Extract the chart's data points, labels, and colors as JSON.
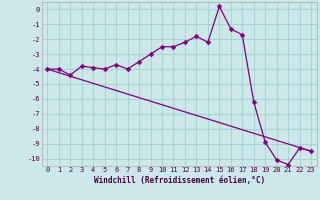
{
  "xlabel": "Windchill (Refroidissement éolien,°C)",
  "background_color": "#cce8e8",
  "grid_color": "#99cccc",
  "line_color": "#800080",
  "line1_x": [
    0,
    1,
    2,
    3,
    4,
    5,
    6,
    7,
    8,
    9,
    10,
    11,
    12,
    13,
    14,
    15,
    16,
    17,
    18,
    19,
    20,
    21,
    22,
    23
  ],
  "line1_y": [
    -4.0,
    -4.0,
    -4.4,
    -3.8,
    -3.9,
    -4.0,
    -3.7,
    -4.0,
    -3.5,
    -3.0,
    -2.5,
    -2.5,
    -2.2,
    -1.8,
    -2.2,
    0.2,
    -1.3,
    -1.7,
    -6.2,
    -8.9,
    -10.1,
    -10.4,
    -9.3,
    -9.5
  ],
  "line2_x": [
    0,
    23
  ],
  "line2_y": [
    -4.0,
    -9.5
  ],
  "ylim": [
    -10.5,
    0.5
  ],
  "xlim": [
    -0.5,
    23.5
  ],
  "yticks": [
    0,
    -1,
    -2,
    -3,
    -4,
    -5,
    -6,
    -7,
    -8,
    -9,
    -10
  ],
  "xticks": [
    0,
    1,
    2,
    3,
    4,
    5,
    6,
    7,
    8,
    9,
    10,
    11,
    12,
    13,
    14,
    15,
    16,
    17,
    18,
    19,
    20,
    21,
    22,
    23
  ],
  "xtick_labels": [
    "0",
    "1",
    "2",
    "3",
    "4",
    "5",
    "6",
    "7",
    "8",
    "9",
    "10",
    "11",
    "12",
    "13",
    "14",
    "15",
    "16",
    "17",
    "18",
    "19",
    "20",
    "21",
    "22",
    "23"
  ],
  "marker": "D",
  "markersize": 2.5,
  "linewidth": 0.9,
  "tick_fontsize": 5.0,
  "xlabel_fontsize": 5.5
}
